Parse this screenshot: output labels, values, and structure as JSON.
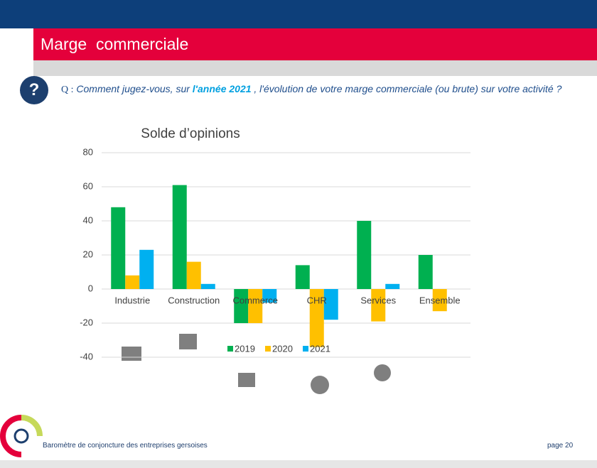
{
  "header": {
    "title": "Marge  commerciale"
  },
  "question": {
    "badge": "?",
    "prefix": "Q :",
    "before": "Comment jugez-vous, sur",
    "highlight": "l'année 2021",
    "after": ", l'évolution de votre marge commerciale (ou brute) sur votre activité ?"
  },
  "chart_data": {
    "type": "bar",
    "title": "Solde d’opinions",
    "categories": [
      "Industrie",
      "Construction",
      "Commerce",
      "CHR",
      "Services",
      "Ensemble"
    ],
    "series": [
      {
        "name": "2019",
        "color": "#00b050",
        "values": [
          48,
          61,
          -20,
          14,
          40,
          20
        ]
      },
      {
        "name": "2020",
        "color": "#ffc000",
        "values": [
          8,
          16,
          -20,
          -34,
          -19,
          -13
        ]
      },
      {
        "name": "2021",
        "color": "#00b0f0",
        "values": [
          23,
          3,
          -8,
          -18,
          3,
          null
        ]
      }
    ],
    "ylim": [
      -40,
      80
    ],
    "yticks": [
      -40,
      -20,
      0,
      20,
      40,
      60,
      80
    ],
    "grid": true,
    "legend": "inside-bottom"
  },
  "footer": {
    "text": "Baromètre de conjoncture des entreprises gersoises",
    "page": "page 20"
  }
}
